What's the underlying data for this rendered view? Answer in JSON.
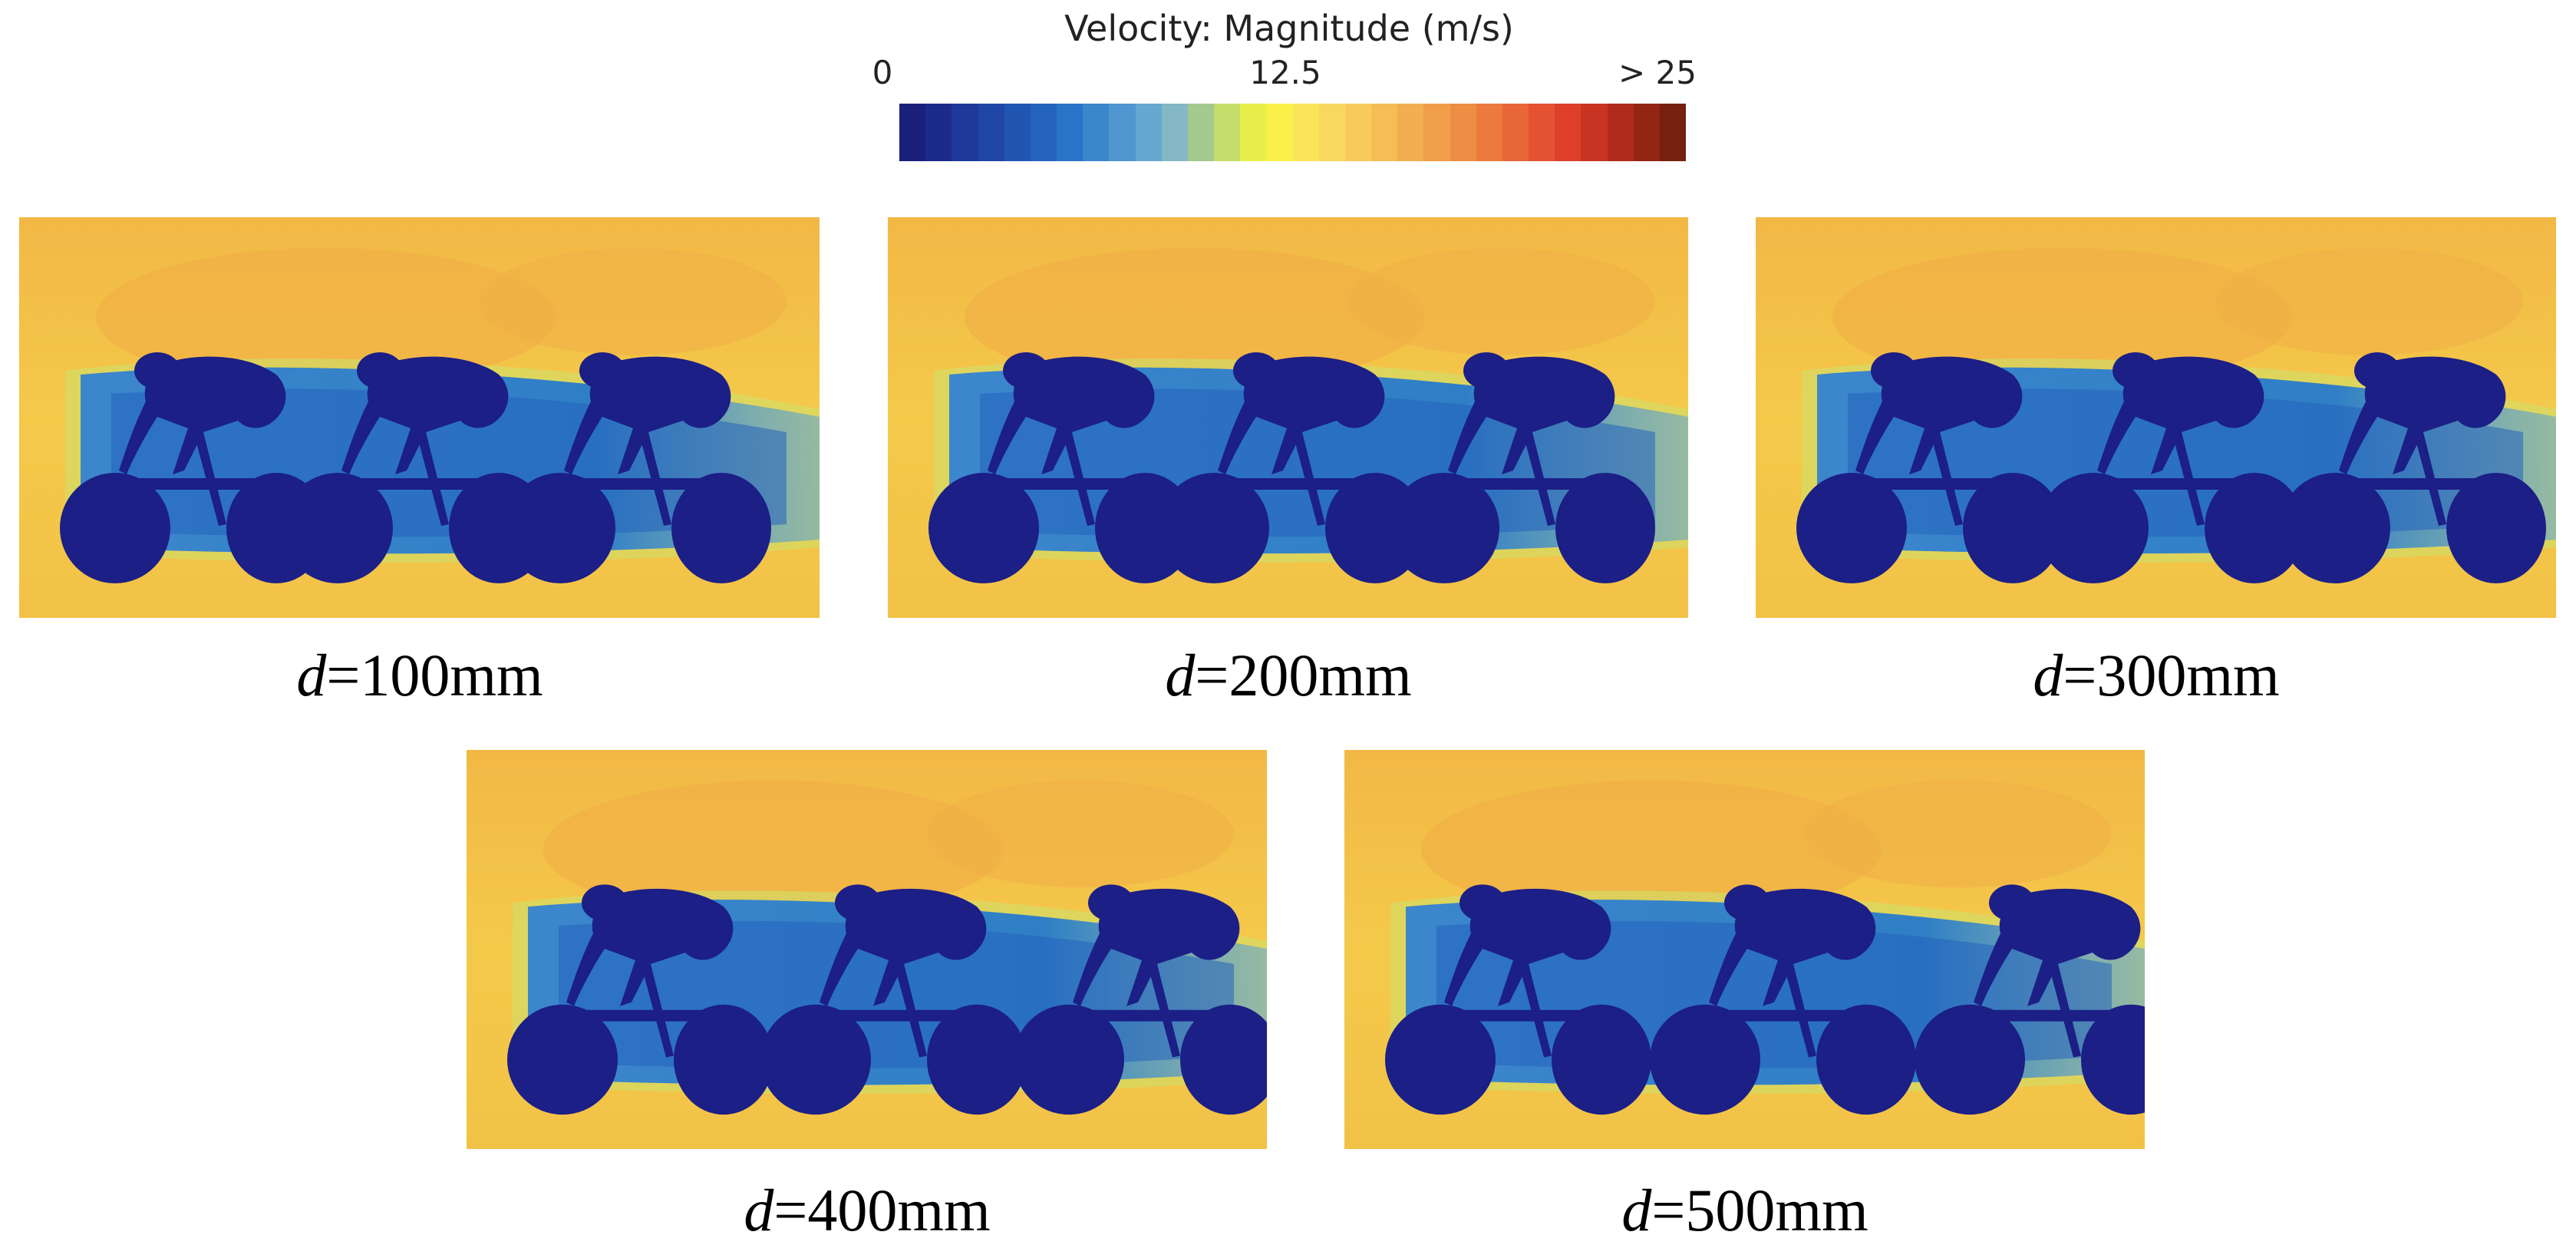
{
  "colorbar": {
    "title": "Velocity: Magnitude (m/s)",
    "min_label": "0",
    "mid_label": "12.5",
    "max_label": "> 25",
    "colors": [
      "#1a1f7a",
      "#1c2a8a",
      "#1d3898",
      "#1f46a6",
      "#2155b2",
      "#2363bd",
      "#2a73c6",
      "#3c86cc",
      "#5096d0",
      "#66a8d0",
      "#83b8c4",
      "#a3c98f",
      "#c5dd6a",
      "#e8ef4a",
      "#fbf04a",
      "#fae55a",
      "#f8d85e",
      "#f6cb5c",
      "#f4bd56",
      "#f2ae50",
      "#f09e4a",
      "#ee8d44",
      "#ec7a3e",
      "#e96638",
      "#e55232",
      "#dd3f2a",
      "#c93422",
      "#b02b1b",
      "#932514",
      "#76200f"
    ]
  },
  "panels": [
    {
      "var": "d",
      "text": "=100mm"
    },
    {
      "var": "d",
      "text": "=200mm"
    },
    {
      "var": "d",
      "text": "=300mm"
    },
    {
      "var": "d",
      "text": "=400mm"
    },
    {
      "var": "d",
      "text": "=500mm"
    }
  ]
}
